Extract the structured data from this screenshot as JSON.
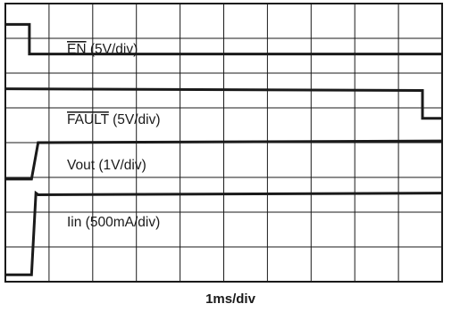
{
  "chart_data": {
    "type": "line",
    "grid": {
      "divisions_x": 10,
      "divisions_y": 8,
      "on": true
    },
    "xlabel": "1ms/div",
    "x_range_div": [
      0,
      10
    ],
    "y_range_div": [
      0,
      8
    ],
    "series": [
      {
        "name": "EN",
        "label": "EN (5V/div)",
        "overline": "EN",
        "suffix": " (5V/div)",
        "color": "#1a1a1a",
        "points": [
          [
            0,
            7.4
          ],
          [
            0.55,
            7.4
          ],
          [
            0.55,
            6.55
          ],
          [
            10,
            6.55
          ]
        ]
      },
      {
        "name": "FAULT",
        "label": "FAULT (5V/div)",
        "overline": "FAULT",
        "suffix": " (5V/div)",
        "color": "#1a1a1a",
        "points": [
          [
            0,
            5.55
          ],
          [
            9.55,
            5.5
          ],
          [
            9.55,
            4.7
          ],
          [
            10,
            4.7
          ]
        ]
      },
      {
        "name": "Vout",
        "label": "Vout (1V/div)",
        "overline": "",
        "suffix": "Vout (1V/div)",
        "color": "#1a1a1a",
        "points": [
          [
            0,
            2.95
          ],
          [
            0.6,
            2.95
          ],
          [
            0.75,
            4.0
          ],
          [
            10,
            4.05
          ]
        ]
      },
      {
        "name": "Iin",
        "label": "Iin (500mA/div)",
        "overline": "",
        "suffix": "Iin (500mA/div)",
        "color": "#1a1a1a",
        "points": [
          [
            0,
            0.2
          ],
          [
            0.6,
            0.2
          ],
          [
            0.7,
            2.55
          ],
          [
            0.75,
            2.5
          ],
          [
            10,
            2.55
          ]
        ]
      }
    ]
  }
}
